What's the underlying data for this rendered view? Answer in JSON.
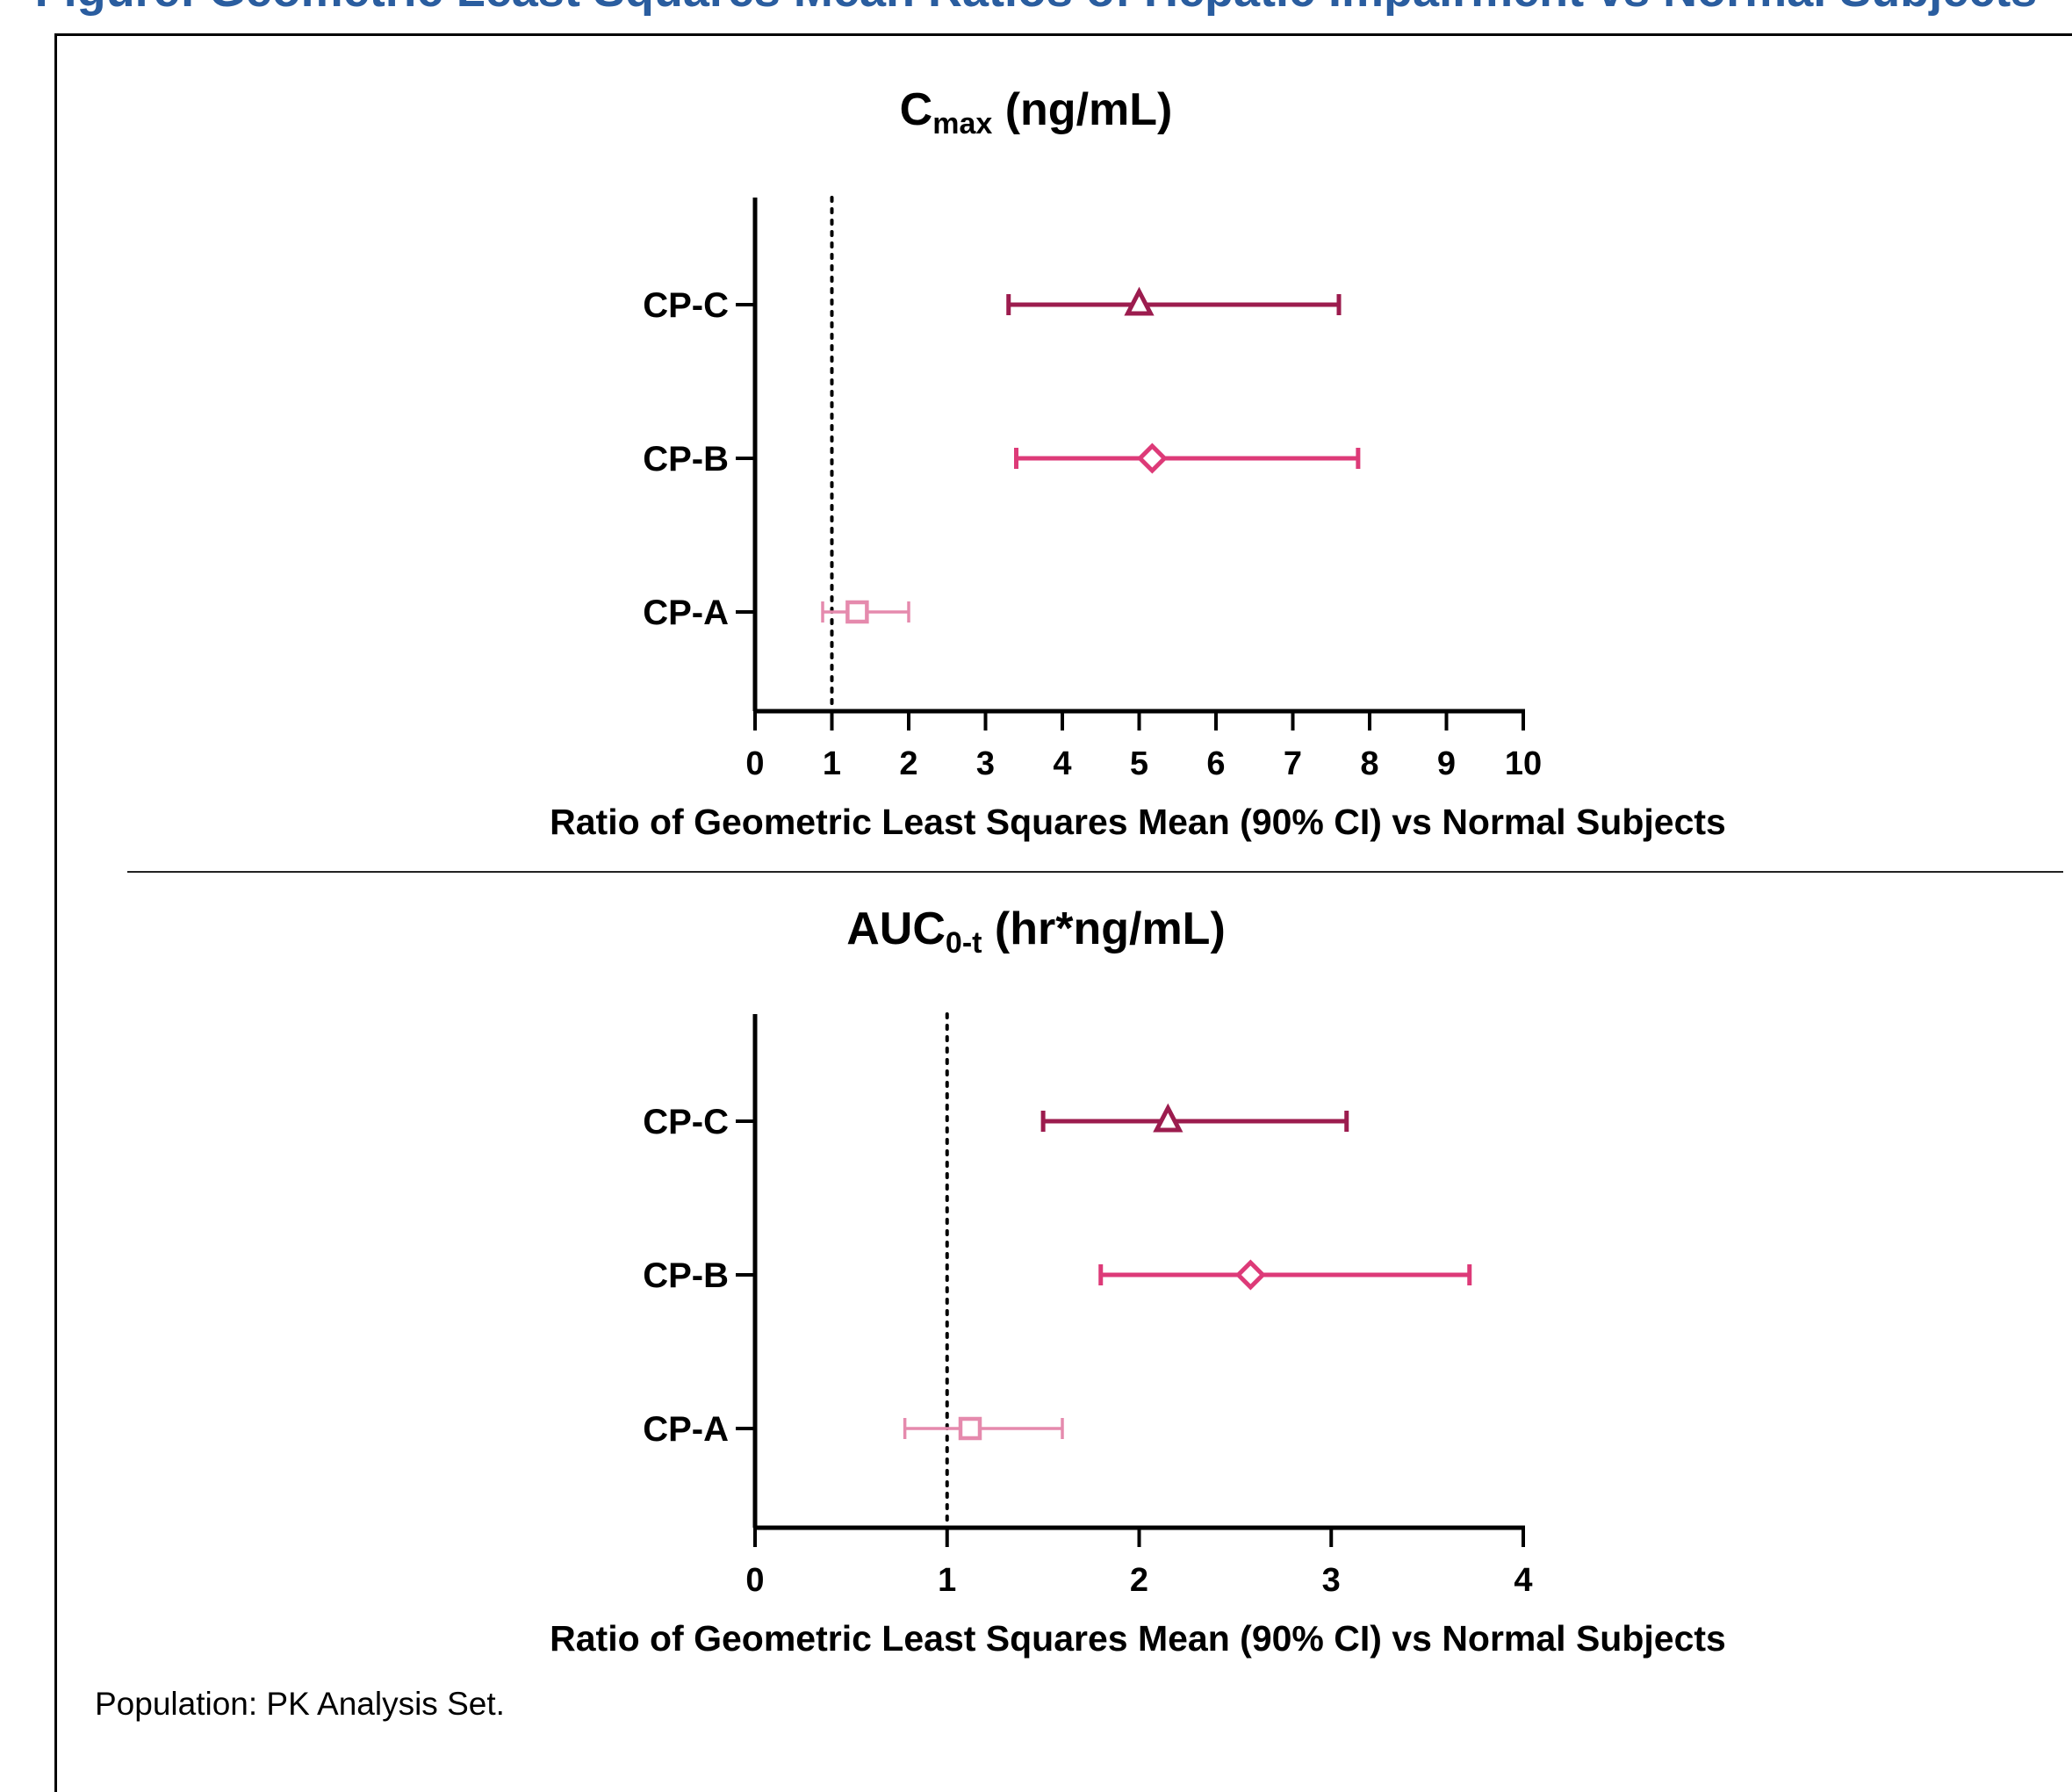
{
  "header_clipped": "Figure: Geometric Least Squares Mean Ratios of Hepatic Impairment vs Normal Subjects",
  "footnote": "Population: PK Analysis Set.",
  "colors": {
    "CP-C": "#9c1c4e",
    "CP-B": "#dd3a78",
    "CP-A": "#e58aad"
  },
  "chart_data": [
    {
      "type": "forest",
      "title_main": "C",
      "title_sub": "max",
      "title_rest": " (ng/mL)",
      "xlabel": "Ratio of Geometric Least Squares Mean (90% CI) vs Normal Subjects",
      "xlim": [
        0,
        10
      ],
      "xticks": [
        "0",
        "1",
        "2",
        "3",
        "4",
        "5",
        "6",
        "7",
        "8",
        "9",
        "10"
      ],
      "reference_line": 1,
      "categories": [
        "CP-C",
        "CP-B",
        "CP-A"
      ],
      "markers": [
        "triangle",
        "diamond",
        "square"
      ],
      "estimates": [
        5.0,
        5.17,
        1.33
      ],
      "lower": [
        3.3,
        3.4,
        0.88
      ],
      "upper": [
        7.6,
        7.85,
        2.0
      ]
    },
    {
      "type": "forest",
      "title_main": "AUC",
      "title_sub": "0-t",
      "title_rest": " (hr*ng/mL)",
      "xlabel": "Ratio of Geometric Least Squares Mean (90% CI) vs Normal Subjects",
      "xlim": [
        0,
        4
      ],
      "xticks": [
        "0",
        "1",
        "2",
        "3",
        "4"
      ],
      "reference_line": 1,
      "categories": [
        "CP-C",
        "CP-B",
        "CP-A"
      ],
      "markers": [
        "triangle",
        "diamond",
        "square"
      ],
      "estimates": [
        2.15,
        2.58,
        1.12
      ],
      "lower": [
        1.5,
        1.8,
        0.78
      ],
      "upper": [
        3.08,
        3.72,
        1.6
      ]
    }
  ]
}
